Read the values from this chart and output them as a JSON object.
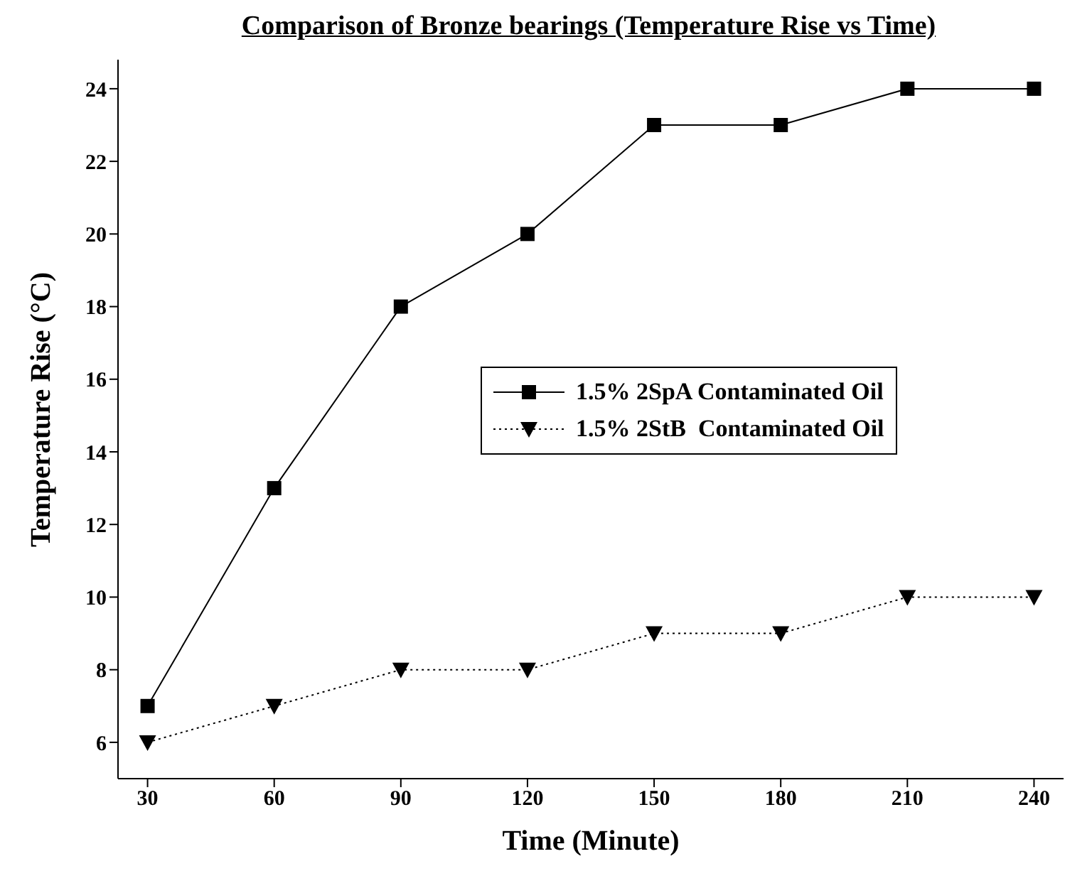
{
  "chart_data": {
    "type": "line",
    "title": "Comparison of Bronze bearings (Temperature Rise vs Time)",
    "xlabel": "Time (Minute)",
    "ylabel": "Temperature Rise (°C)",
    "x": [
      30,
      60,
      90,
      120,
      150,
      180,
      210,
      240
    ],
    "series": [
      {
        "name": "1.5% 2SpA Contaminated Oil",
        "color": "#000000",
        "marker": "square",
        "line_style": "solid",
        "values": [
          7,
          13,
          18,
          20,
          23,
          23,
          24,
          24
        ]
      },
      {
        "name": "1.5% 2StB  Contaminated Oil",
        "color": "#000000",
        "marker": "triangle",
        "line_style": "dotted",
        "values": [
          6,
          7,
          8,
          8,
          9,
          9,
          10,
          10
        ]
      }
    ],
    "xlim": [
      23,
      247
    ],
    "xticks": [
      30,
      60,
      90,
      120,
      150,
      180,
      210,
      240
    ],
    "ylim": [
      5,
      24.8
    ],
    "yticks": [
      6,
      8,
      10,
      12,
      14,
      16,
      18,
      20,
      22,
      24
    ],
    "grid": false,
    "legend": "right"
  }
}
